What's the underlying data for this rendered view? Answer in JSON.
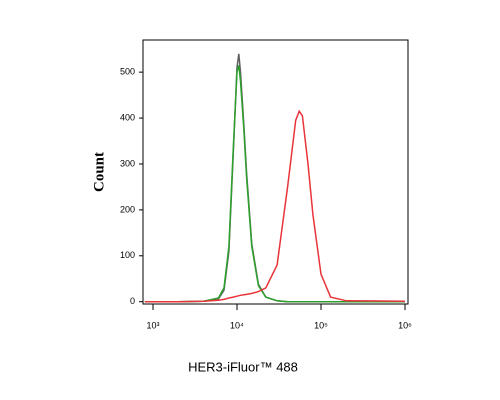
{
  "chart_data": {
    "type": "line",
    "x_label": "HER3-iFluor™ 488",
    "y_label": "Count",
    "x": [
      800,
      2000,
      4000,
      6000,
      7000,
      8000,
      9000,
      10000,
      10500,
      11000,
      12000,
      13000,
      15000,
      18000,
      22000,
      30000,
      40000,
      50000,
      55000,
      60000,
      70000,
      80000,
      100000,
      130000,
      200000,
      1000000
    ],
    "xscale": "log",
    "xlim": [
      760,
      1086000
    ],
    "xticks": [
      {
        "value": 1000,
        "label": "10³"
      },
      {
        "value": 10000,
        "label": "10⁴"
      },
      {
        "value": 100000,
        "label": "10⁵"
      },
      {
        "value": 1000000,
        "label": "10⁶"
      }
    ],
    "ylim": [
      -5,
      570
    ],
    "yticks": [
      0,
      100,
      200,
      300,
      400,
      500
    ],
    "series": [
      {
        "color": "#606060",
        "values": [
          0,
          0,
          1,
          6,
          25,
          110,
          320,
          510,
          540,
          500,
          390,
          280,
          125,
          38,
          10,
          2,
          0,
          0,
          0,
          0,
          0,
          0,
          0,
          0,
          0,
          0
        ]
      },
      {
        "color": "#2ca02c",
        "values": [
          0,
          0,
          1,
          8,
          30,
          120,
          330,
          500,
          515,
          480,
          380,
          270,
          120,
          35,
          10,
          2,
          0,
          0,
          0,
          0,
          0,
          0,
          0,
          0,
          0,
          0
        ]
      },
      {
        "color": "#e8343a",
        "values": [
          0,
          0,
          1,
          3,
          5,
          8,
          10,
          12,
          13,
          14,
          15,
          16,
          18,
          22,
          30,
          80,
          250,
          395,
          415,
          405,
          300,
          190,
          60,
          10,
          2,
          1
        ]
      }
    ]
  }
}
